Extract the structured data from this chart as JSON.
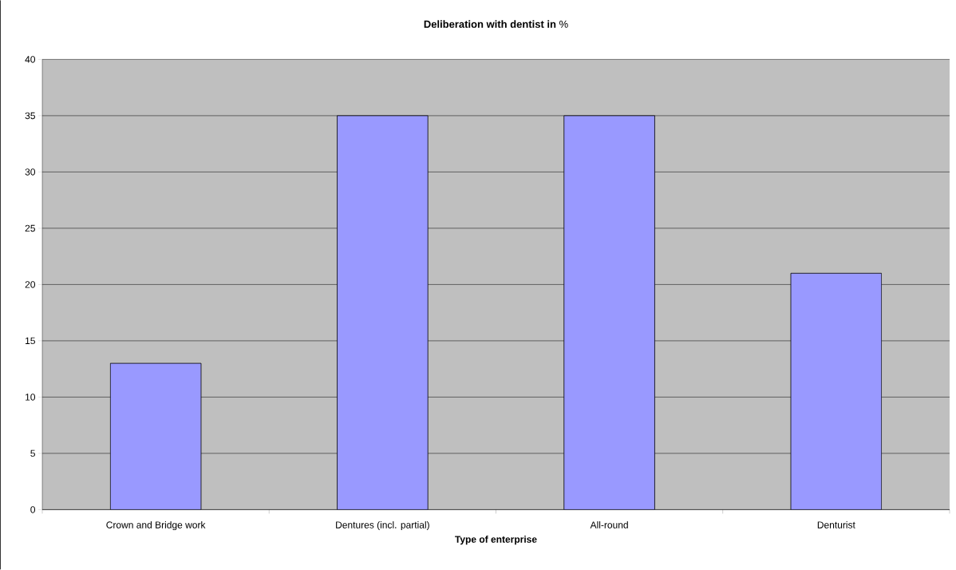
{
  "chart_data": {
    "type": "bar",
    "title": "**Deliberation with dentist in** %",
    "xlabel": "Type of enterprise",
    "categories": [
      "Crown and Bridge work",
      "Dentures (incl. partial)",
      "All-round",
      "Denturist"
    ],
    "values": [
      13,
      35,
      35,
      21
    ],
    "color": "#9999ff",
    "ylim": [
      0,
      40
    ],
    "yticks": [
      0,
      5,
      10,
      15,
      20,
      25,
      30,
      35,
      40
    ],
    "grid": "y"
  }
}
